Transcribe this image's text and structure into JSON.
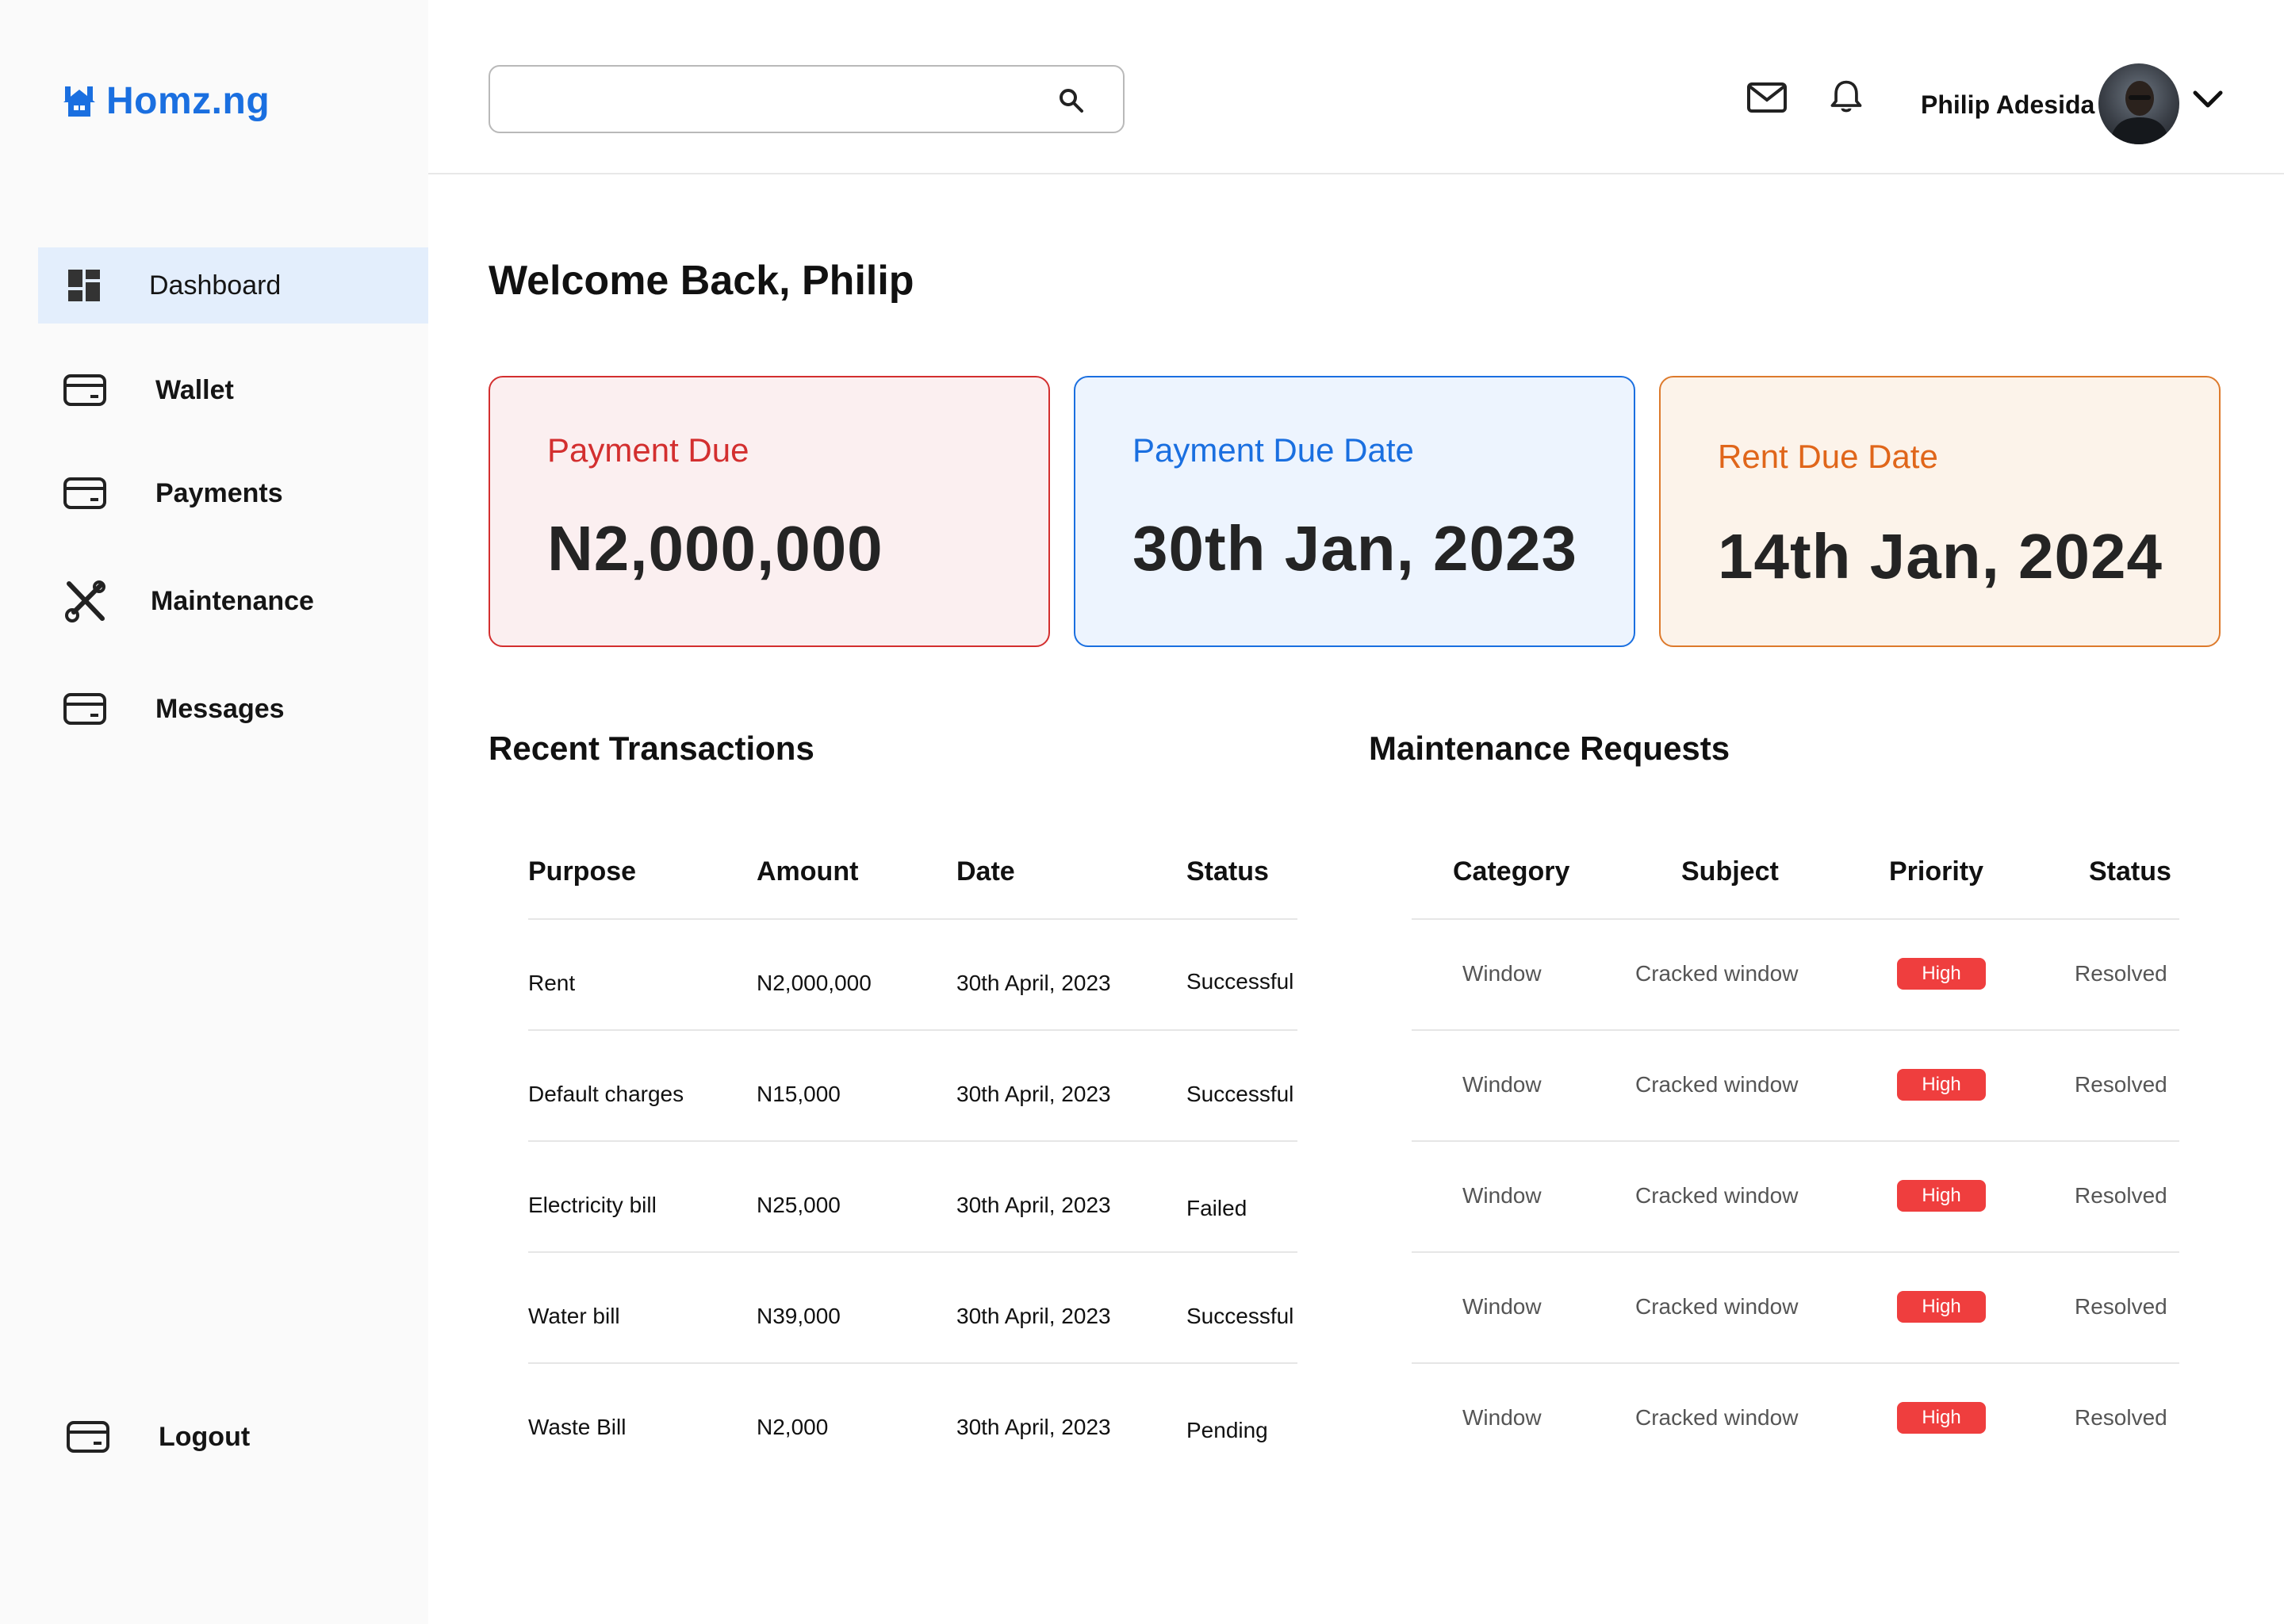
{
  "brand": {
    "name": "Homz.ng",
    "color": "#1a6fe0"
  },
  "sidebar": {
    "items": [
      {
        "label": "Dashboard",
        "icon": "dashboard-icon",
        "active": true
      },
      {
        "label": "Wallet",
        "icon": "card-icon"
      },
      {
        "label": "Payments",
        "icon": "card-icon"
      },
      {
        "label": "Maintenance",
        "icon": "tools-icon"
      },
      {
        "label": "Messages",
        "icon": "card-icon"
      }
    ],
    "logout": {
      "label": "Logout",
      "icon": "card-icon"
    }
  },
  "header": {
    "search": {
      "value": "",
      "placeholder": ""
    },
    "user": {
      "name": "Philip Adesida"
    }
  },
  "main": {
    "welcome": "Welcome Back, Philip",
    "cards": [
      {
        "label": "Payment Due",
        "value": "N2,000,000",
        "accent": "#d32f2f"
      },
      {
        "label": "Payment Due Date",
        "value": "30th Jan, 2023",
        "accent": "#1a6fe0"
      },
      {
        "label": "Rent Due Date",
        "value": "14th Jan, 2024",
        "accent": "#e0661a"
      }
    ],
    "transactions": {
      "title": "Recent Transactions",
      "columns": [
        "Purpose",
        "Amount",
        "Date",
        "Status"
      ],
      "rows": [
        {
          "purpose": "Rent",
          "amount": "N2,000,000",
          "date": "30th April, 2023",
          "status": "Successful"
        },
        {
          "purpose": "Default charges",
          "amount": "N15,000",
          "date": "30th April, 2023",
          "status": "Successful"
        },
        {
          "purpose": "Electricity bill",
          "amount": "N25,000",
          "date": "30th April, 2023",
          "status": "Failed"
        },
        {
          "purpose": "Water bill",
          "amount": "N39,000",
          "date": "30th April, 2023",
          "status": "Successful"
        },
        {
          "purpose": "Waste Bill",
          "amount": "N2,000",
          "date": "30th April, 2023",
          "status": "Pending"
        }
      ]
    },
    "maintenance": {
      "title": "Maintenance Requests",
      "columns": [
        "Category",
        "Subject",
        "Priority",
        "Status"
      ],
      "rows": [
        {
          "category": "Window",
          "subject": "Cracked window",
          "priority": "High",
          "status": "Resolved"
        },
        {
          "category": "Window",
          "subject": "Cracked window",
          "priority": "High",
          "status": "Resolved"
        },
        {
          "category": "Window",
          "subject": "Cracked window",
          "priority": "High",
          "status": "Resolved"
        },
        {
          "category": "Window",
          "subject": "Cracked window",
          "priority": "High",
          "status": "Resolved"
        },
        {
          "category": "Window",
          "subject": "Cracked window",
          "priority": "High",
          "status": "Resolved"
        }
      ]
    }
  },
  "colors": {
    "success": "#16a34a",
    "failed": "#e53935",
    "pending": "#1a6fe0",
    "high": "#ef3e3e"
  }
}
